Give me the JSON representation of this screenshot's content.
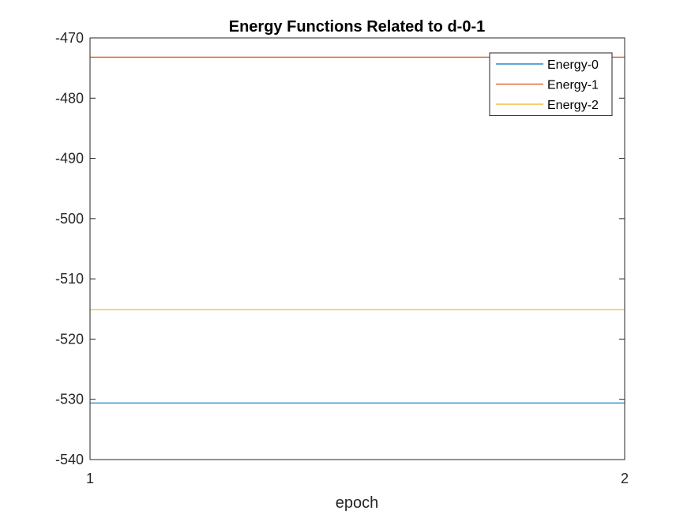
{
  "chart_data": {
    "type": "line",
    "title": "Energy Functions Related to d-0-1",
    "xlabel": "epoch",
    "ylabel": "",
    "x": [
      1,
      2
    ],
    "xlim": [
      1,
      2
    ],
    "ylim": [
      -540,
      -470
    ],
    "xticks": [
      1,
      2
    ],
    "yticks": [
      -540,
      -530,
      -520,
      -510,
      -500,
      -490,
      -480,
      -470
    ],
    "grid": false,
    "legend_position": "top-right",
    "series": [
      {
        "name": "Energy-0",
        "values": [
          -530.6,
          -530.6
        ],
        "color": "#0072BD"
      },
      {
        "name": "Energy-1",
        "values": [
          -473.2,
          -473.2
        ],
        "color": "#D95319"
      },
      {
        "name": "Energy-2",
        "values": [
          -515.1,
          -515.1
        ],
        "color": "#EDB120"
      }
    ]
  }
}
